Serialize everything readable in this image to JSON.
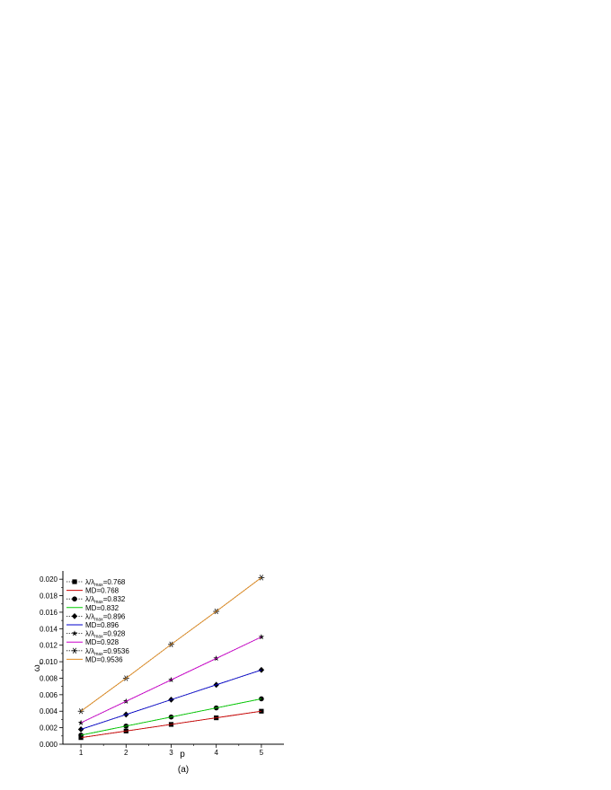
{
  "chart_data": {
    "type": "line",
    "title": "",
    "xlabel": "p",
    "ylabel": "ω",
    "ylabel_sub": "x",
    "caption": "(a)",
    "x": [
      1,
      2,
      3,
      4,
      5
    ],
    "xlim": [
      0.6,
      5.5
    ],
    "ylim": [
      0.0,
      0.021
    ],
    "xticks": [
      "1",
      "2",
      "3",
      "4",
      "5"
    ],
    "yticks": [
      "0.000",
      "0.002",
      "0.004",
      "0.006",
      "0.008",
      "0.010",
      "0.012",
      "0.014",
      "0.016",
      "0.018",
      "0.020"
    ],
    "grid": false,
    "legend_position": "top-left",
    "series": [
      {
        "name": "λ/λmax=0.768",
        "legend_main": "λ/λ",
        "legend_sub": "max",
        "legend_tail": "=0.768",
        "style": "marker-dotted",
        "marker": "square",
        "color": "#000000",
        "values": [
          0.0008,
          0.0016,
          0.0024,
          0.0032,
          0.004
        ]
      },
      {
        "name": "MD=0.768",
        "legend_main": "MD=0.768",
        "style": "line",
        "color": "#cc0000",
        "values": [
          0.0008,
          0.0016,
          0.0024,
          0.0032,
          0.004
        ]
      },
      {
        "name": "λ/λmax=0.832",
        "legend_main": "λ/λ",
        "legend_sub": "max",
        "legend_tail": "=0.832",
        "style": "marker-dotted",
        "marker": "circle",
        "color": "#000000",
        "values": [
          0.0011,
          0.0022,
          0.0033,
          0.0044,
          0.0055
        ]
      },
      {
        "name": "MD=0.832",
        "legend_main": "MD=0.832",
        "style": "line",
        "color": "#00cc00",
        "values": [
          0.0011,
          0.0022,
          0.0033,
          0.0044,
          0.0055
        ]
      },
      {
        "name": "λ/λmax=0.896",
        "legend_main": "λ/λ",
        "legend_sub": "max",
        "legend_tail": "=0.896",
        "style": "marker-dotted",
        "marker": "diamond",
        "color": "#000000",
        "values": [
          0.0018,
          0.0036,
          0.0054,
          0.0072,
          0.009
        ]
      },
      {
        "name": "MD=0.896",
        "legend_main": "MD=0.896",
        "style": "line",
        "color": "#0000cc",
        "values": [
          0.0018,
          0.0036,
          0.0054,
          0.0072,
          0.009
        ]
      },
      {
        "name": "λ/λmax=0.928",
        "legend_main": "λ/λ",
        "legend_sub": "max",
        "legend_tail": "=0.928",
        "style": "marker-dotted",
        "marker": "star",
        "color": "#000000",
        "values": [
          0.0026,
          0.0052,
          0.0078,
          0.0104,
          0.013
        ]
      },
      {
        "name": "MD=0.928",
        "legend_main": "MD=0.928",
        "style": "line",
        "color": "#cc00cc",
        "values": [
          0.0026,
          0.0052,
          0.0078,
          0.0104,
          0.013
        ]
      },
      {
        "name": "λ/λmax=0.9536",
        "legend_main": "λ/λ",
        "legend_sub": "max",
        "legend_tail": "=0.9536",
        "style": "marker-dotted",
        "marker": "asterisk",
        "color": "#000000",
        "values": [
          0.004,
          0.008,
          0.0121,
          0.0161,
          0.0202
        ]
      },
      {
        "name": "MD=0.9536",
        "legend_main": "MD=0.9536",
        "style": "line",
        "color": "#e08a1e",
        "values": [
          0.004,
          0.008,
          0.0121,
          0.0161,
          0.0202
        ]
      }
    ]
  }
}
